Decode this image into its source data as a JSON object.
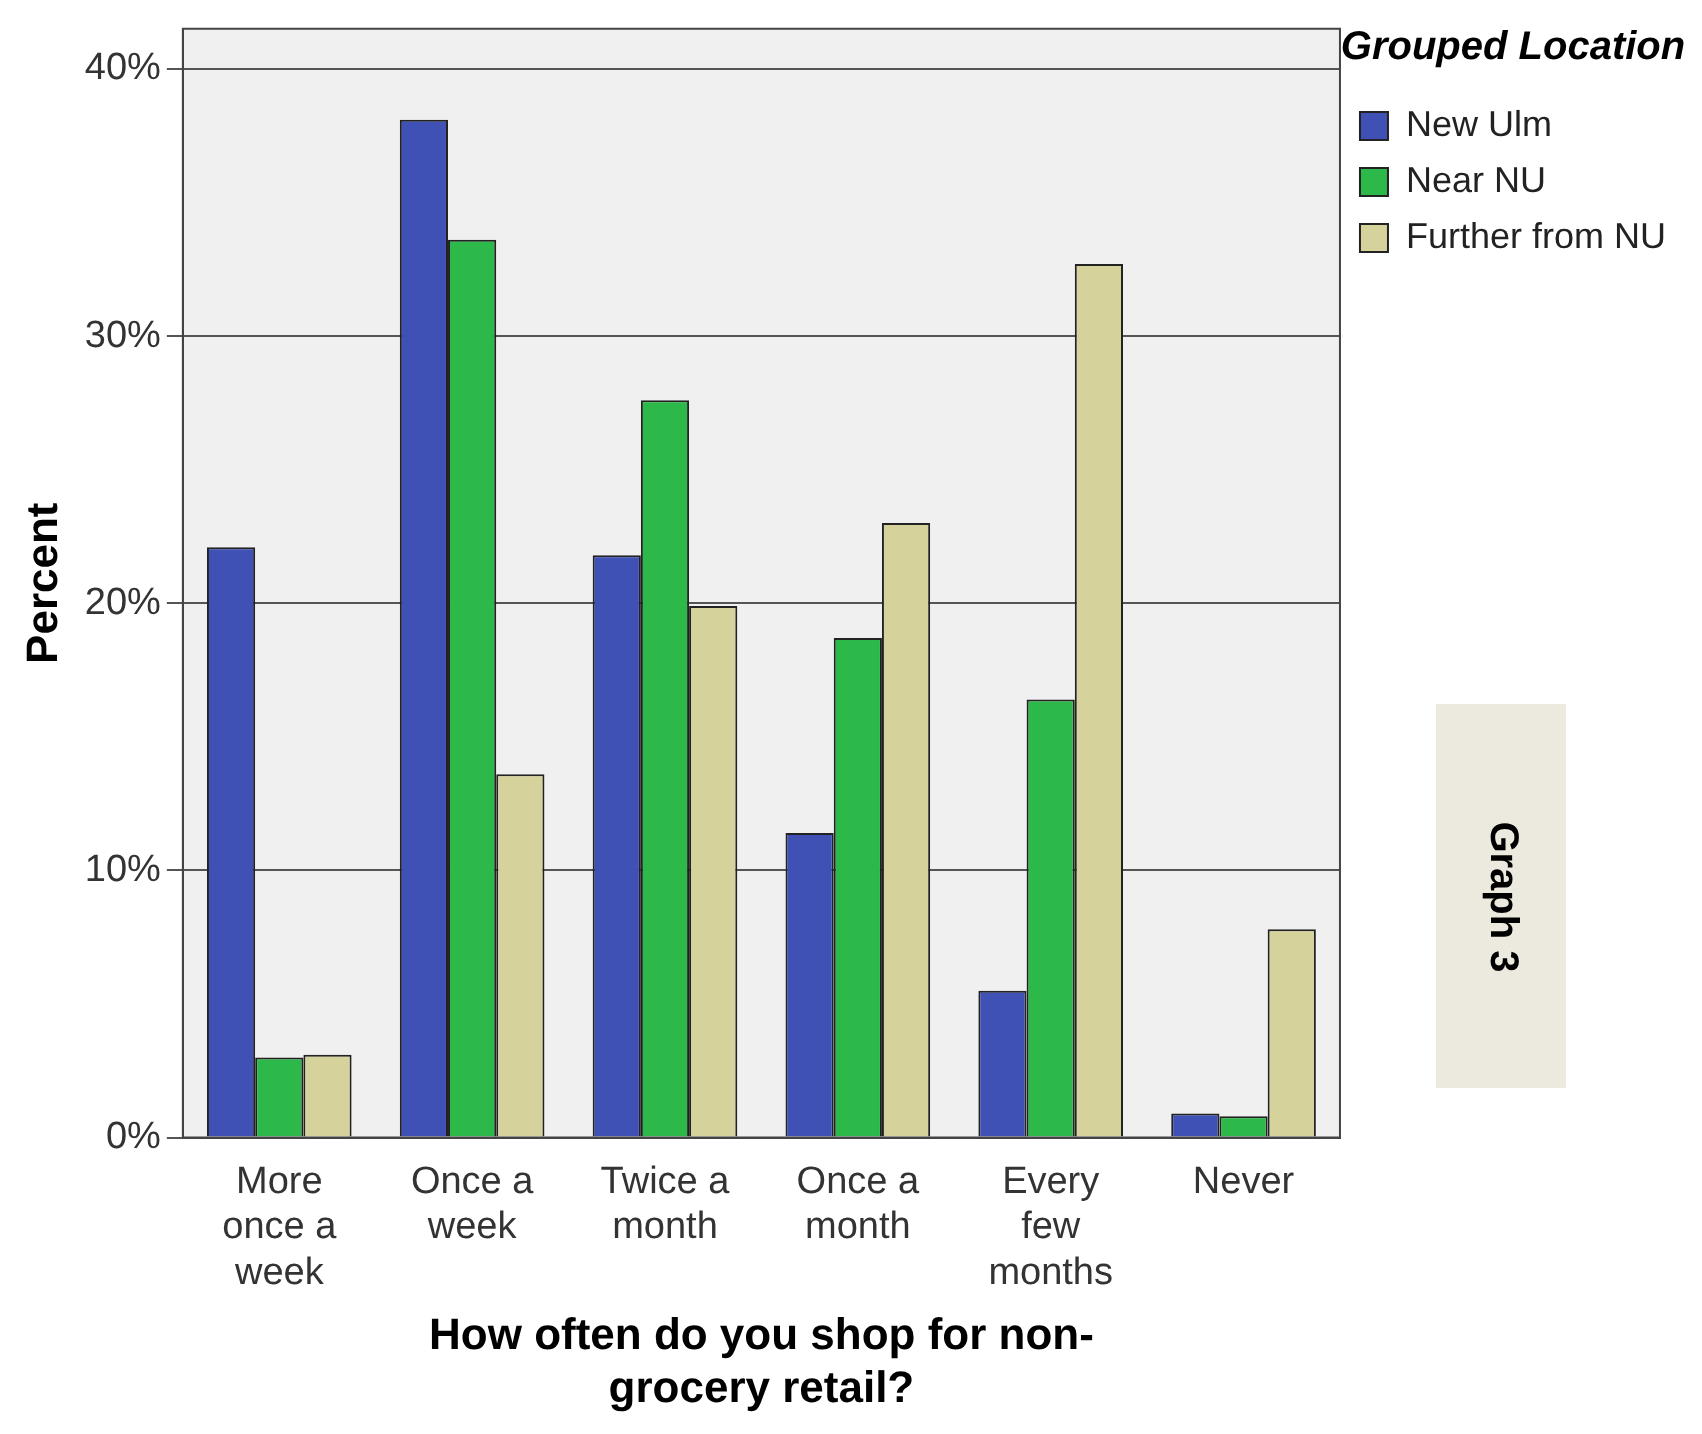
{
  "chart_data": {
    "type": "bar",
    "xlabel": "How often do you shop for non-grocery retail?",
    "ylabel": "Percent",
    "legend_title": "Grouped Location",
    "legend": "right",
    "categories": [
      "More once a week",
      "Once a week",
      "Twice a month",
      "Once a month",
      "Every few months",
      "Never"
    ],
    "series": [
      {
        "name": "New Ulm",
        "color": "#3f51b5",
        "values": [
          22.1,
          38.1,
          21.8,
          11.4,
          5.5,
          0.9
        ]
      },
      {
        "name": "Near NU",
        "color": "#2db84a",
        "values": [
          3.0,
          33.6,
          27.6,
          18.7,
          16.4,
          0.8
        ]
      },
      {
        "name": "Further from NU",
        "color": "#d6d29b",
        "values": [
          3.1,
          13.6,
          19.9,
          23.0,
          32.7,
          7.8
        ]
      }
    ],
    "ylim": [
      0,
      41.5
    ],
    "yticks": [
      {
        "value": 0,
        "label": "0%"
      },
      {
        "value": 10,
        "label": "10%"
      },
      {
        "value": 20,
        "label": "20%"
      },
      {
        "value": 30,
        "label": "30%"
      },
      {
        "value": 40,
        "label": "40%"
      }
    ],
    "grid": "y",
    "annotations": [
      "Graph 3"
    ]
  }
}
